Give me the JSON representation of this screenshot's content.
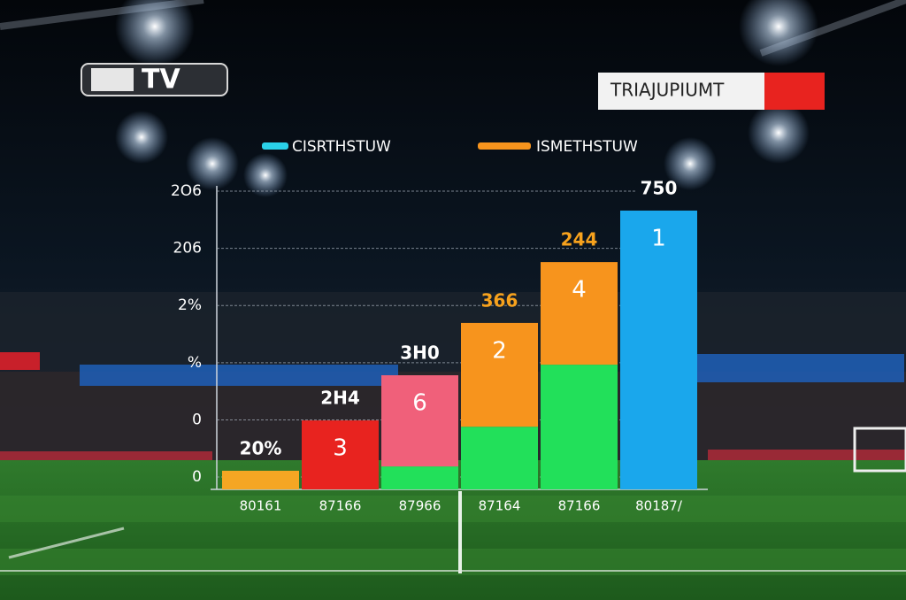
{
  "chart_data": {
    "type": "bar",
    "stacked": true,
    "logo": "TV",
    "banner": "TRIAJUPIUMT",
    "categories": [
      "80161",
      "87166",
      "87966",
      "87164",
      "87166",
      "80187/"
    ],
    "series": [
      {
        "name": "CISRTHSTUW",
        "color": "#2ad1e8",
        "colors": [
          "#f5a623",
          "#e8231f",
          "#22e05a",
          "#22e05a",
          "#22e05a",
          "#1aa7ec"
        ],
        "values": [
          2.2,
          19.8,
          3.7,
          17.6,
          39.3,
          93.2
        ]
      },
      {
        "name": "ISMETHSTUW",
        "color": "#f7941d",
        "colors": [
          null,
          null,
          "#f0607a",
          "#f7941d",
          "#f7941d",
          null
        ],
        "values": [
          null,
          null,
          31.9,
          36.3,
          35.9,
          null
        ]
      }
    ],
    "bar_labels": [
      null,
      "3",
      "6",
      "2",
      "4",
      "1"
    ],
    "top_labels": [
      "20%",
      "2H4",
      "3H0",
      "366",
      "244",
      "750"
    ],
    "top_label_colors": [
      "#ffffff",
      "#ffffff",
      "#ffffff",
      "#f7a21d",
      "#f7a21d",
      "#ffffff"
    ],
    "ylim": [
      -3.7,
      100
    ],
    "yticks": [
      0,
      {
        "value": 20,
        "label": "0"
      },
      {
        "value": 40,
        "label": "%"
      },
      {
        "value": 60,
        "label": "2%"
      },
      {
        "value": 80,
        "label": "206"
      },
      {
        "value": 100,
        "label": "2O6"
      }
    ],
    "grid": true
  }
}
